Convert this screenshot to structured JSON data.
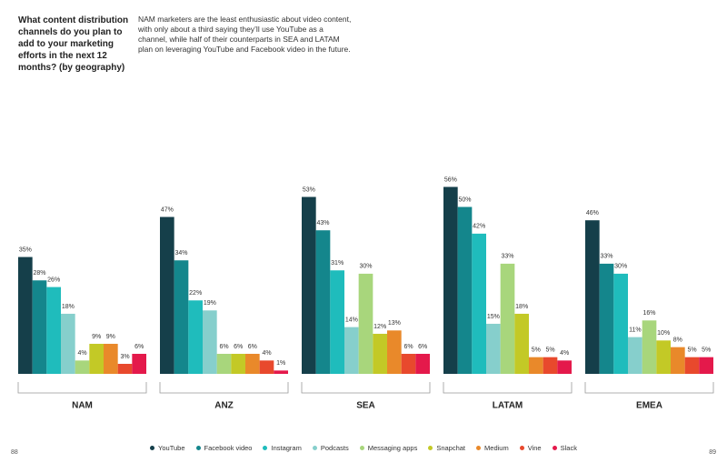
{
  "chart_data": {
    "type": "bar",
    "title": "What content distribution channels do you plan to add to your marketing efforts in the next 12 months? (by geography)",
    "subtitle": "NAM marketers are the least enthusiastic about video content, with only about a third saying they’ll use YouTube as a channel, while half of their counterparts in SEA and LATAM plan on leveraging YouTube and Facebook video in the future.",
    "annotations": [
      "88",
      "89"
    ],
    "categories": [
      "NAM",
      "ANZ",
      "SEA",
      "LATAM",
      "EMEA"
    ],
    "series": [
      {
        "name": "YouTube",
        "color": "#153f4a",
        "values": [
          35,
          47,
          53,
          56,
          46
        ],
        "value_labels": [
          "35%",
          "47%",
          "53%",
          "56%",
          "46%"
        ]
      },
      {
        "name": "Facebook video",
        "color": "#14868c",
        "values": [
          28,
          34,
          43,
          50,
          33
        ],
        "value_labels": [
          "28%",
          "34%",
          "43%",
          "50%",
          "33%"
        ]
      },
      {
        "name": "Instagram",
        "color": "#1fbcbc",
        "values": [
          26,
          22,
          31,
          42,
          30
        ],
        "value_labels": [
          "26%",
          "22%",
          "31%",
          "42%",
          "30%"
        ]
      },
      {
        "name": "Podcasts",
        "color": "#86cfcc",
        "values": [
          18,
          19,
          14,
          15,
          11
        ],
        "value_labels": [
          "18%",
          "19%",
          "14%",
          "15%",
          "11%"
        ]
      },
      {
        "name": "Messaging apps",
        "color": "#a8d67c",
        "values": [
          4,
          6,
          30,
          33,
          16
        ],
        "value_labels": [
          "4%",
          "6%",
          "30%",
          "33%",
          "16%"
        ]
      },
      {
        "name": "Snapchat",
        "color": "#c3c926",
        "values": [
          9,
          6,
          12,
          18,
          10
        ],
        "value_labels": [
          "9%",
          "6%",
          "12%",
          "18%",
          "10%"
        ]
      },
      {
        "name": "Medium",
        "color": "#e9892a",
        "values": [
          9,
          6,
          13,
          5,
          8
        ],
        "value_labels": [
          "9%",
          "6%",
          "13%",
          "5%",
          "8%"
        ]
      },
      {
        "name": "Vine",
        "color": "#e8492d",
        "values": [
          3,
          4,
          6,
          5,
          5
        ],
        "value_labels": [
          "3%",
          "4%",
          "6%",
          "5%",
          "5%"
        ]
      },
      {
        "name": "Slack",
        "color": "#e4194b",
        "values": [
          6,
          1,
          6,
          4,
          5
        ],
        "value_labels": [
          "6%",
          "1%",
          "6%",
          "4%",
          "5%"
        ]
      }
    ]
  }
}
